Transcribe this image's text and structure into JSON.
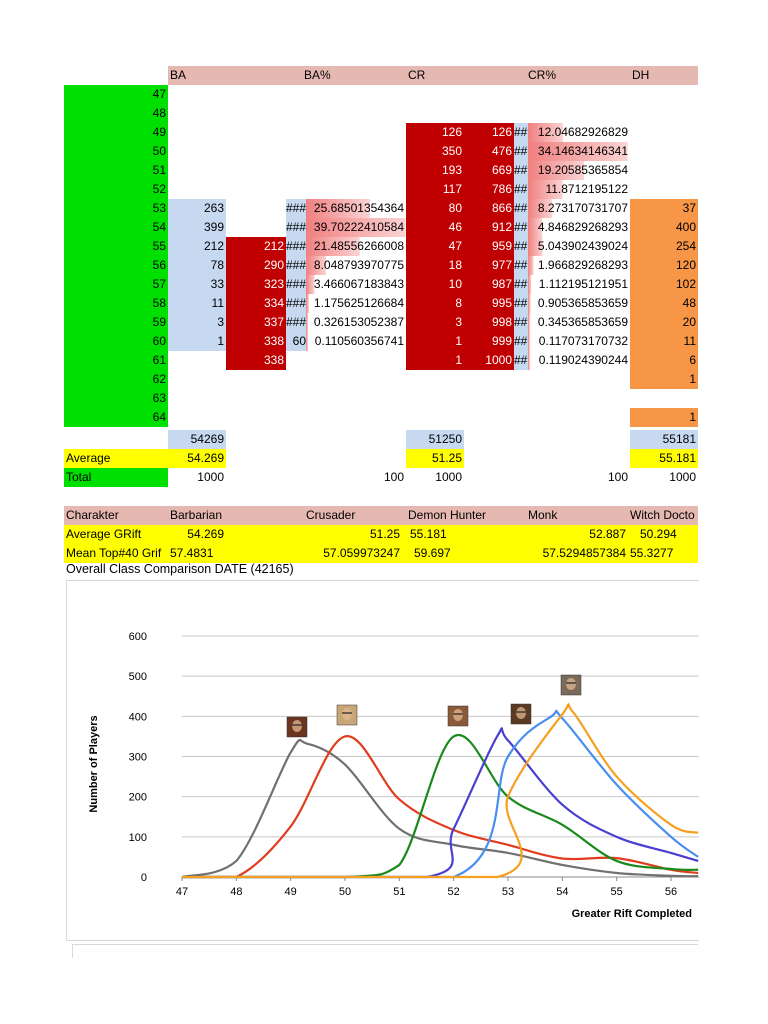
{
  "sheet": {
    "headers": [
      "BA",
      "BA%",
      "CR",
      "CR%",
      "DH"
    ],
    "rift_levels": [
      47,
      48,
      49,
      50,
      51,
      52,
      53,
      54,
      55,
      56,
      57,
      58,
      59,
      60,
      61,
      62,
      63,
      64
    ],
    "ba": [
      "",
      "",
      "",
      "",
      "",
      "",
      "263",
      "399",
      "212",
      "78",
      "33",
      "11",
      "3",
      "1",
      "",
      "",
      "",
      ""
    ],
    "ba_cum": [
      "",
      "",
      "",
      "",
      "",
      "",
      "",
      "",
      "212",
      "290",
      "323",
      "334",
      "337",
      "338",
      "338",
      "",
      "",
      ""
    ],
    "ba_hash": [
      "",
      "",
      "",
      "",
      "",
      "",
      "###",
      "###",
      "###",
      "###",
      "###",
      "###",
      "###",
      "60",
      "",
      "",
      "",
      ""
    ],
    "ba_pct": [
      "",
      "",
      "",
      "",
      "",
      "",
      "25.68501354364",
      "39.70222410584",
      "21.48556266008",
      "8.048793970775",
      "3.466067183843",
      "1.175625126684",
      "0.326153052387",
      "0.110560356741",
      "",
      "",
      "",
      ""
    ],
    "cr": [
      "",
      "",
      "126",
      "350",
      "193",
      "117",
      "80",
      "46",
      "47",
      "18",
      "10",
      "8",
      "3",
      "1",
      "1",
      "",
      "",
      ""
    ],
    "cr_cum": [
      "",
      "",
      "126",
      "476",
      "669",
      "786",
      "866",
      "912",
      "959",
      "977",
      "987",
      "995",
      "998",
      "999",
      "1000",
      "",
      "",
      ""
    ],
    "cr_hash": [
      "",
      "",
      "##",
      "##",
      "##",
      "##",
      "##",
      "##",
      "##",
      "##",
      "##",
      "##",
      "##",
      "##",
      "##",
      "",
      "",
      ""
    ],
    "cr_pct": [
      "",
      "",
      "12.04682926829",
      "34.14634146341",
      "19.20585365854",
      "11.8712195122",
      "8.273170731707",
      "4.846829268293",
      "5.043902439024",
      "1.966829268293",
      "1.112195121951",
      "0.905365853659",
      "0.345365853659",
      "0.117073170732",
      "0.119024390244",
      "",
      "",
      ""
    ],
    "dh": [
      "",
      "",
      "",
      "",
      "",
      "",
      "37",
      "400",
      "254",
      "120",
      "102",
      "48",
      "20",
      "11",
      "6",
      "1",
      "",
      "1"
    ],
    "sum_row": {
      "ba": "54269",
      "cr": "51250",
      "dh": "55181"
    },
    "average_row": {
      "label": "Average",
      "ba": "54.269",
      "cr": "51.25",
      "dh": "55.181"
    },
    "total_row": {
      "label": "Total",
      "ba": "1000",
      "ba_pct": "100",
      "cr": "1000",
      "cr_pct": "100",
      "dh": "1000"
    }
  },
  "summary": {
    "header": [
      "Charakter",
      "Barbarian",
      "Crusader",
      "Demon Hunter",
      "Monk",
      "Witch Docto"
    ],
    "average": {
      "label": "Average GRift",
      "values": [
        "54.269",
        "51.25",
        "55.181",
        "52.887",
        "50.294"
      ]
    },
    "mean": {
      "label": "Mean Top#40 Grif",
      "values": [
        "57.4831",
        "57.059973247",
        "59.697",
        "57.5294857384",
        "55.3277"
      ]
    }
  },
  "chart_data": {
    "type": "line",
    "title": "Overall Class Comparison DATE (42165)",
    "xlabel": "Greater Rift Completed",
    "ylabel": "Number of Players",
    "xlim": [
      47,
      56.5
    ],
    "ylim": [
      0,
      600
    ],
    "x_ticks": [
      47,
      48,
      49,
      50,
      51,
      52,
      53,
      54,
      55,
      56
    ],
    "y_ticks": [
      0,
      100,
      200,
      300,
      400,
      500,
      600
    ],
    "grid": true,
    "series": [
      {
        "color": "#707070",
        "x": [
          47,
          48,
          49,
          49.3,
          50,
          51,
          52,
          53,
          54,
          55,
          56,
          56.5
        ],
        "y": [
          0,
          40,
          310,
          332,
          280,
          120,
          80,
          60,
          30,
          10,
          3,
          2
        ]
      },
      {
        "color": "#e03c1e",
        "x": [
          47,
          48,
          49,
          50,
          51,
          52,
          53,
          54,
          55,
          56,
          56.5
        ],
        "y": [
          0,
          0,
          126,
          350,
          193,
          117,
          80,
          46,
          47,
          18,
          10
        ]
      },
      {
        "color": "#1a8a1a",
        "x": [
          47,
          50,
          51,
          52,
          53,
          54,
          55,
          56,
          56.5
        ],
        "y": [
          0,
          0,
          30,
          350,
          200,
          130,
          40,
          20,
          18
        ]
      },
      {
        "color": "#4a3fd0",
        "x": [
          47,
          51.5,
          52,
          52.8,
          53,
          54,
          55,
          56,
          56.5
        ],
        "y": [
          0,
          0,
          120,
          350,
          340,
          180,
          100,
          60,
          40
        ]
      },
      {
        "color": "#4a8ef0",
        "x": [
          47,
          52,
          53,
          53.8,
          54,
          55,
          56,
          56.5
        ],
        "y": [
          0,
          0,
          300,
          400,
          395,
          230,
          100,
          50
        ]
      },
      {
        "color": "#f5a01e",
        "x": [
          47,
          52.8,
          53,
          54,
          54.2,
          55,
          56,
          56.5
        ],
        "y": [
          0,
          0,
          200,
          405,
          410,
          250,
          130,
          110
        ]
      }
    ]
  },
  "icons": {
    "portraits": [
      {
        "name": "witch-doctor-portrait-icon",
        "color": "#6a3520"
      },
      {
        "name": "crusader-portrait-icon",
        "color": "#c9a676"
      },
      {
        "name": "demon-hunter-portrait-icon",
        "color": "#8a5a3a"
      },
      {
        "name": "monk-portrait-icon",
        "color": "#5a3a22"
      },
      {
        "name": "barbarian-portrait-icon",
        "color": "#7a6a5a"
      }
    ]
  },
  "colors": {
    "green": "#00e000",
    "light_blue": "#c6d9f1",
    "dark_red": "#c00000",
    "orange": "#f79646",
    "yellow": "#ffff00",
    "header_pink": "#e6b8b2"
  }
}
